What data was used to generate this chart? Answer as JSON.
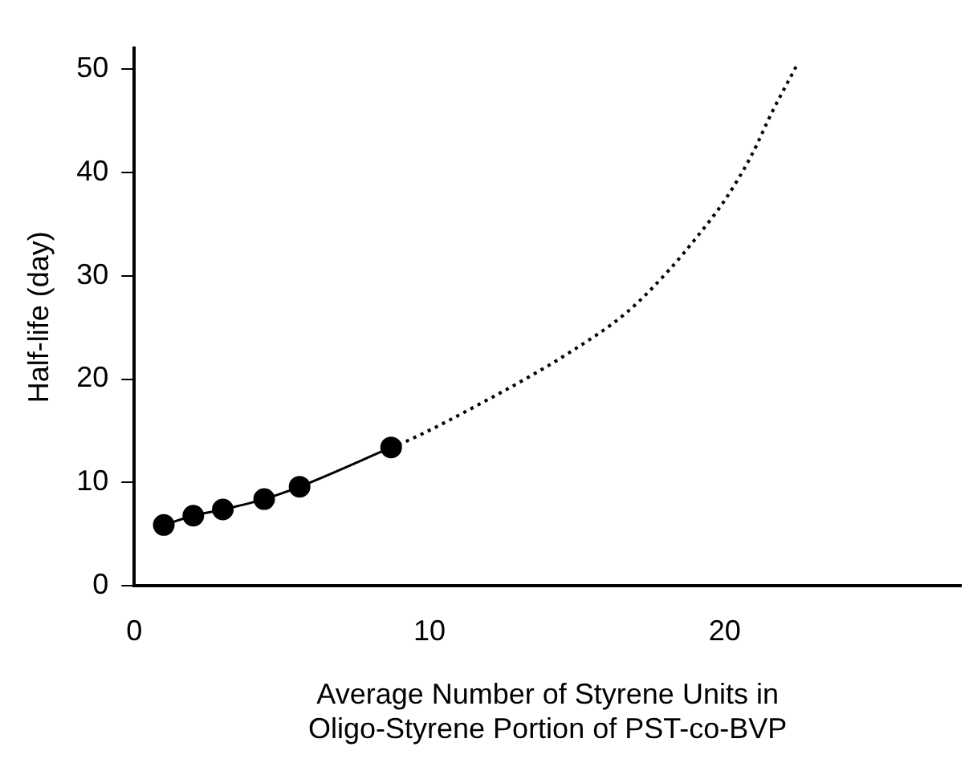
{
  "chart_data": {
    "type": "line",
    "xlabel": "Average Number of Styrene Units in\nOligo-Styrene Portion of PST-co-BVP",
    "ylabel": "Half-life (day)",
    "xlim": [
      0,
      28
    ],
    "xticks": [
      0,
      10,
      20
    ],
    "ylim": [
      0,
      52
    ],
    "yticks": [
      0,
      10,
      20,
      30,
      40,
      50
    ],
    "grid": false,
    "legend": false,
    "series": [
      {
        "color": "#000000",
        "marker": "circle",
        "line_style": "solid",
        "x": [
          1,
          2,
          3,
          4.4,
          5.6,
          8.7
        ],
        "values": [
          5.9,
          6.8,
          7.4,
          8.4,
          9.6,
          13.4
        ]
      },
      {
        "color": "#000000",
        "marker": "none",
        "line_style": "dotted",
        "x": [
          8.7,
          8.9,
          11.9,
          14.7,
          16.7,
          18.1,
          19.1,
          20.0,
          20.9,
          21.6,
          22.45
        ],
        "values": [
          13.4,
          13.6,
          17.9,
          22.5,
          26.5,
          30.5,
          33.9,
          37.3,
          41.6,
          45.8,
          50.4
        ]
      }
    ]
  }
}
